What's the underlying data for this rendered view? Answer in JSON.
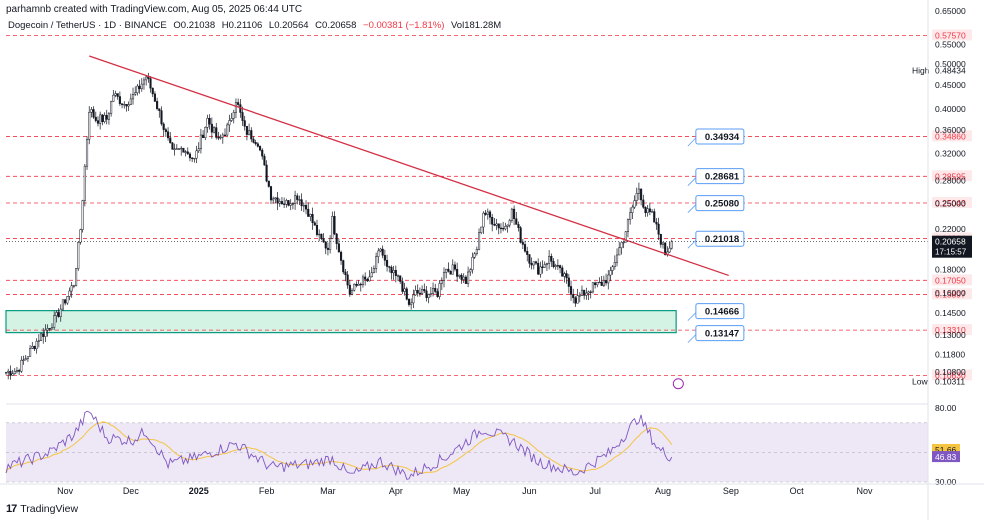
{
  "header": {
    "credit": "parhamnb created with TradingView.com, Aug 05, 2025 06:44 UTC",
    "symbol": "Dogecoin / TetherUS · 1D · BINANCE",
    "open": "O0.21038",
    "high": "H0.21106",
    "low": "L0.20564",
    "close": "C0.20658",
    "change": "−0.00381 (−1.81%)",
    "volume": "Vol181.28M"
  },
  "footer": {
    "brand": "TradingView"
  },
  "colors": {
    "candle": "#131722",
    "trendline": "#d32f45",
    "support_level": "#f23645",
    "box_fill": "#d4f3e4",
    "box_border": "#089981",
    "rsi_line": "#7e57c2",
    "rsi_ma": "#f5c542",
    "rsi_band": "#ede7f6",
    "callout_border": "#5b9cf6"
  },
  "chart_data": {
    "type": "candlestick",
    "title": "Dogecoin / TetherUS · 1D · BINANCE",
    "scale": "log",
    "ylim": [
      0.095,
      0.66
    ],
    "x_range": [
      "2024-10-05",
      "2025-11-30"
    ],
    "y_ticks": [
      "0.65000",
      "0.55000",
      "0.50000",
      "0.45000",
      "0.40000",
      "0.36000",
      "0.32000",
      "0.28000",
      "0.25000",
      "0.22000",
      "0.18000",
      "0.16000",
      "0.14500",
      "0.13000",
      "0.11800",
      "0.10800"
    ],
    "x_ticks": [
      {
        "date": "2024-11-01",
        "label": "Nov"
      },
      {
        "date": "2024-12-01",
        "label": "Dec"
      },
      {
        "date": "2025-01-01",
        "label": "2025"
      },
      {
        "date": "2025-02-01",
        "label": "Feb"
      },
      {
        "date": "2025-03-01",
        "label": "Mar"
      },
      {
        "date": "2025-04-01",
        "label": "Apr"
      },
      {
        "date": "2025-05-01",
        "label": "May"
      },
      {
        "date": "2025-06-01",
        "label": "Jun"
      },
      {
        "date": "2025-07-01",
        "label": "Jul"
      },
      {
        "date": "2025-08-01",
        "label": "Aug"
      },
      {
        "date": "2025-09-01",
        "label": "Sep"
      },
      {
        "date": "2025-10-01",
        "label": "Oct"
      },
      {
        "date": "2025-11-01",
        "label": "Nov"
      }
    ],
    "close_series": [
      [
        "2024-10-05",
        0.108
      ],
      [
        "2024-10-10",
        0.109
      ],
      [
        "2024-10-15",
        0.118
      ],
      [
        "2024-10-20",
        0.128
      ],
      [
        "2024-10-25",
        0.136
      ],
      [
        "2024-10-28",
        0.142
      ],
      [
        "2024-11-02",
        0.158
      ],
      [
        "2024-11-05",
        0.168
      ],
      [
        "2024-11-08",
        0.22
      ],
      [
        "2024-11-10",
        0.3
      ],
      [
        "2024-11-12",
        0.4
      ],
      [
        "2024-11-15",
        0.38
      ],
      [
        "2024-11-20",
        0.38
      ],
      [
        "2024-11-23",
        0.43
      ],
      [
        "2024-11-28",
        0.41
      ],
      [
        "2024-12-03",
        0.43
      ],
      [
        "2024-12-08",
        0.47
      ],
      [
        "2024-12-12",
        0.42
      ],
      [
        "2024-12-18",
        0.34
      ],
      [
        "2024-12-20",
        0.32
      ],
      [
        "2024-12-25",
        0.33
      ],
      [
        "2024-12-30",
        0.31
      ],
      [
        "2025-01-05",
        0.38
      ],
      [
        "2025-01-10",
        0.34
      ],
      [
        "2025-01-15",
        0.37
      ],
      [
        "2025-01-18",
        0.42
      ],
      [
        "2025-01-22",
        0.36
      ],
      [
        "2025-01-28",
        0.34
      ],
      [
        "2025-02-03",
        0.26
      ],
      [
        "2025-02-10",
        0.25
      ],
      [
        "2025-02-15",
        0.26
      ],
      [
        "2025-02-20",
        0.24
      ],
      [
        "2025-02-25",
        0.21
      ],
      [
        "2025-03-01",
        0.2
      ],
      [
        "2025-03-03",
        0.23
      ],
      [
        "2025-03-07",
        0.19
      ],
      [
        "2025-03-11",
        0.16
      ],
      [
        "2025-03-16",
        0.17
      ],
      [
        "2025-03-20",
        0.17
      ],
      [
        "2025-03-25",
        0.2
      ],
      [
        "2025-03-28",
        0.18
      ],
      [
        "2025-04-03",
        0.17
      ],
      [
        "2025-04-07",
        0.15
      ],
      [
        "2025-04-10",
        0.16
      ],
      [
        "2025-04-15",
        0.16
      ],
      [
        "2025-04-20",
        0.16
      ],
      [
        "2025-04-23",
        0.18
      ],
      [
        "2025-04-28",
        0.18
      ],
      [
        "2025-05-03",
        0.17
      ],
      [
        "2025-05-08",
        0.2
      ],
      [
        "2025-05-11",
        0.24
      ],
      [
        "2025-05-15",
        0.23
      ],
      [
        "2025-05-20",
        0.22
      ],
      [
        "2025-05-24",
        0.24
      ],
      [
        "2025-05-28",
        0.21
      ],
      [
        "2025-06-01",
        0.19
      ],
      [
        "2025-06-05",
        0.18
      ],
      [
        "2025-06-10",
        0.19
      ],
      [
        "2025-06-14",
        0.18
      ],
      [
        "2025-06-18",
        0.17
      ],
      [
        "2025-06-22",
        0.155
      ],
      [
        "2025-06-26",
        0.16
      ],
      [
        "2025-06-30",
        0.165
      ],
      [
        "2025-07-04",
        0.168
      ],
      [
        "2025-07-08",
        0.175
      ],
      [
        "2025-07-11",
        0.195
      ],
      [
        "2025-07-14",
        0.21
      ],
      [
        "2025-07-18",
        0.245
      ],
      [
        "2025-07-21",
        0.27
      ],
      [
        "2025-07-24",
        0.24
      ],
      [
        "2025-07-27",
        0.235
      ],
      [
        "2025-07-30",
        0.215
      ],
      [
        "2025-08-02",
        0.195
      ],
      [
        "2025-08-05",
        0.20658
      ]
    ],
    "trendline": {
      "from": [
        "2024-11-12",
        0.52
      ],
      "to": [
        "2025-08-31",
        0.1747
      ]
    },
    "support_box": {
      "from": "2024-10-05",
      "to": "2025-08-07",
      "top": 0.14666,
      "bottom": 0.13147
    },
    "horizontal_levels": [
      {
        "value": 0.5757,
        "label": "0.57570"
      },
      {
        "value": 0.3486,
        "label": "0.34860"
      },
      {
        "value": 0.28595,
        "label": "0.28595"
      },
      {
        "value": 0.25043,
        "label": "0.25043"
      },
      {
        "value": 0.20984,
        "label": "0.20984"
      },
      {
        "value": 0.1705,
        "label": "0.17050"
      },
      {
        "value": 0.15897,
        "label": "0.15897"
      },
      {
        "value": 0.1331,
        "label": "0.13310"
      },
      {
        "value": 0.1063,
        "label": "0.10630"
      }
    ],
    "callouts": [
      {
        "value": 0.34934,
        "label": "0.34934"
      },
      {
        "value": 0.28681,
        "label": "0.28681"
      },
      {
        "value": 0.2508,
        "label": "0.25080"
      },
      {
        "value": 0.21018,
        "label": "0.21018"
      },
      {
        "value": 0.14666,
        "label": "0.14666"
      },
      {
        "value": 0.13147,
        "label": "0.13147"
      }
    ],
    "markers": {
      "high": {
        "label": "High",
        "value": "0.48434"
      },
      "low": {
        "label": "Low",
        "value": "0.10311"
      },
      "last": {
        "value": "0.20658",
        "countdown": "17:15:57"
      }
    },
    "rsi": {
      "ylim": [
        30,
        80
      ],
      "ticks": [
        "80.00",
        "30.00"
      ],
      "rsi_value": "46.83",
      "ma_value": "51.66",
      "band": [
        30,
        70
      ],
      "mid": 50,
      "series": [
        [
          "2024-10-05",
          40
        ],
        [
          "2024-10-25",
          50
        ],
        [
          "2024-11-05",
          62
        ],
        [
          "2024-11-12",
          78
        ],
        [
          "2024-11-20",
          60
        ],
        [
          "2024-12-01",
          58
        ],
        [
          "2024-12-08",
          64
        ],
        [
          "2024-12-18",
          42
        ],
        [
          "2024-12-30",
          46
        ],
        [
          "2025-01-18",
          56
        ],
        [
          "2025-02-03",
          40
        ],
        [
          "2025-02-20",
          42
        ],
        [
          "2025-03-03",
          46
        ],
        [
          "2025-03-11",
          34
        ],
        [
          "2025-03-25",
          44
        ],
        [
          "2025-04-07",
          34
        ],
        [
          "2025-04-23",
          46
        ],
        [
          "2025-05-11",
          66
        ],
        [
          "2025-05-24",
          58
        ],
        [
          "2025-06-05",
          44
        ],
        [
          "2025-06-22",
          36
        ],
        [
          "2025-07-08",
          50
        ],
        [
          "2025-07-21",
          74
        ],
        [
          "2025-07-30",
          52
        ],
        [
          "2025-08-05",
          46.83
        ]
      ]
    }
  }
}
